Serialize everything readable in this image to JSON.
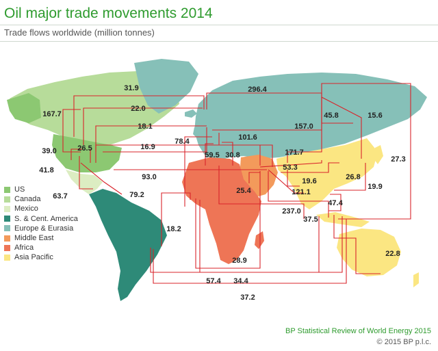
{
  "title": "Oil major trade movements 2014",
  "subtitle": "Trade flows worldwide (million tonnes)",
  "legend": [
    {
      "label": "US",
      "color": "#8cc872"
    },
    {
      "label": "Canada",
      "color": "#b7dc9a"
    },
    {
      "label": "Mexico",
      "color": "#dcedc2"
    },
    {
      "label": "S. & Cent. America",
      "color": "#2e8a78"
    },
    {
      "label": "Europe & Eurasia",
      "color": "#86c0b8"
    },
    {
      "label": "Middle East",
      "color": "#f39a5b"
    },
    {
      "label": "Africa",
      "color": "#ee7556"
    },
    {
      "label": "Asia Pacific",
      "color": "#fbe682"
    }
  ],
  "flow_values": [
    "31.9",
    "296.4",
    "22.0",
    "45.8",
    "15.6",
    "167.7",
    "18.1",
    "157.0",
    "101.6",
    "78.4",
    "39.0",
    "26.5",
    "16.9",
    "59.5",
    "30.8",
    "171.7",
    "27.3",
    "53.3",
    "41.8",
    "93.0",
    "26.8",
    "19.6",
    "25.4",
    "121.1",
    "19.9",
    "63.7",
    "79.2",
    "47.4",
    "237.0",
    "37.5",
    "18.2",
    "22.8",
    "28.9",
    "57.4",
    "34.4",
    "37.2"
  ],
  "colors": {
    "flow": "#d9232a",
    "title": "#2e9b2e"
  },
  "source": "BP Statistical Review of World Energy 2015",
  "copyright": "© 2015 BP p.l.c."
}
